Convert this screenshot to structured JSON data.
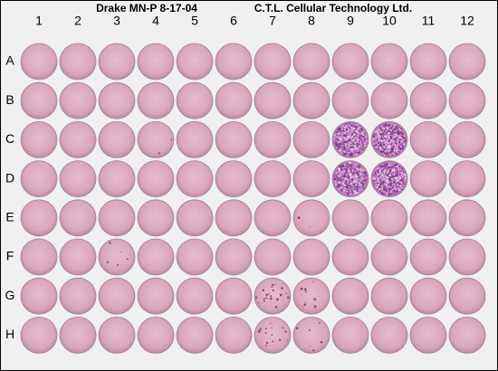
{
  "header": {
    "left": "Drake MN-P 8-17-04",
    "right": "C.T.L. Cellular Technology Ltd."
  },
  "columns": [
    "1",
    "2",
    "3",
    "4",
    "5",
    "6",
    "7",
    "8",
    "9",
    "10",
    "11",
    "12"
  ],
  "rows": [
    "A",
    "B",
    "C",
    "D",
    "E",
    "F",
    "G",
    "H"
  ]
}
